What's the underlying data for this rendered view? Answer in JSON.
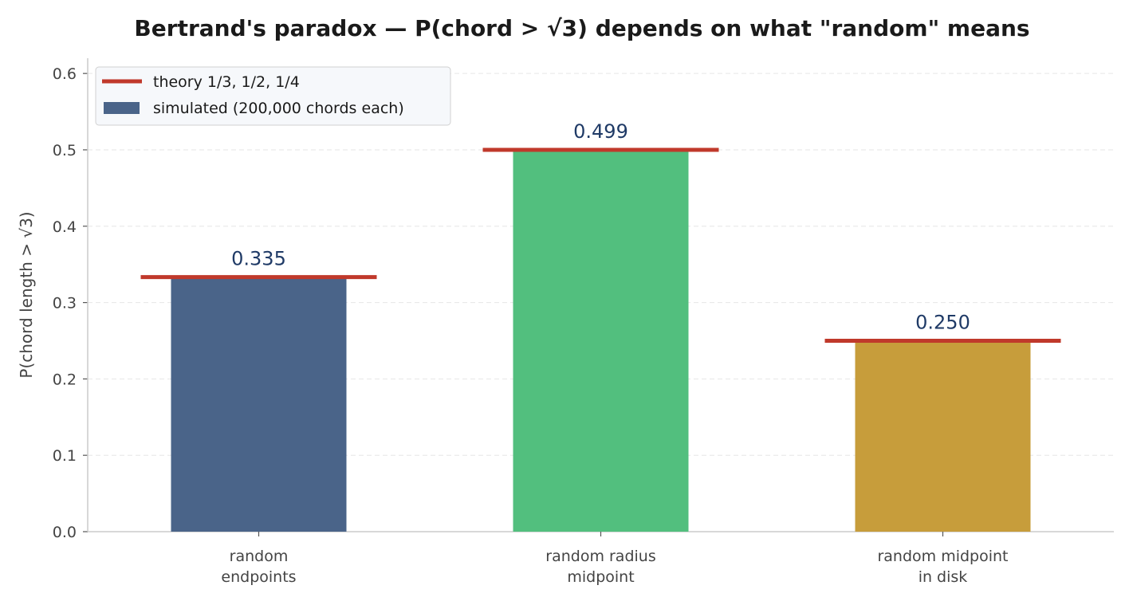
{
  "chart_data": {
    "type": "bar",
    "title": "Bertrand's paradox — P(chord > √3) depends on what \"random\" means",
    "xlabel": "",
    "ylabel": "P(chord length > √3)",
    "ylim": [
      0,
      0.62
    ],
    "yticks": [
      0.0,
      0.1,
      0.2,
      0.3,
      0.4,
      0.5,
      0.6
    ],
    "ytick_labels": [
      "0.0",
      "0.1",
      "0.2",
      "0.3",
      "0.4",
      "0.5",
      "0.6"
    ],
    "grid": "horizontal dashed",
    "legend_position": "top-left",
    "categories": [
      [
        "random",
        "endpoints"
      ],
      [
        "random radius",
        "midpoint"
      ],
      [
        "random midpoint",
        "in disk"
      ]
    ],
    "series": [
      {
        "name": "simulated (200,000 chords each)",
        "values": [
          0.335,
          0.499,
          0.25
        ],
        "value_labels": [
          "0.335",
          "0.499",
          "0.250"
        ],
        "colors": [
          "#4a6489",
          "#52bf7e",
          "#c79d3b"
        ]
      },
      {
        "name": "theory 1/3, 1/2, 1/4",
        "values": [
          0.3333,
          0.5,
          0.25
        ],
        "color": "#c0392b"
      }
    ],
    "data_label_color": "#1f3a66"
  }
}
